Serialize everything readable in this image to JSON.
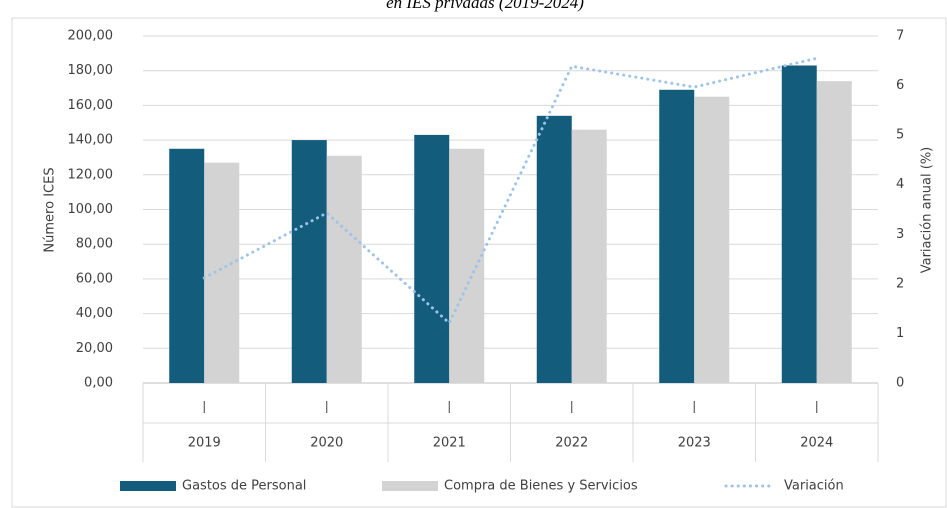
{
  "chart_data": {
    "type": "bar",
    "title": "en IES privadas (2019-2024)",
    "y_label": "Número ICES",
    "y2_label": "Variación anual (%)",
    "categories": [
      "2019",
      "2020",
      "2021",
      "2022",
      "2023",
      "2024"
    ],
    "series": [
      {
        "name": "Gastos de Personal",
        "color": "#145c7c",
        "values": [
          135,
          140,
          143,
          154,
          169,
          183
        ]
      },
      {
        "name": "Compra de Bienes y Servicios",
        "color": "#d3d3d3",
        "values": [
          127,
          131,
          135,
          146,
          165,
          174
        ]
      },
      {
        "name": "Variación",
        "color": "#9dc3e6",
        "type": "line",
        "axis": "y2",
        "values": [
          2.12,
          3.43,
          1.21,
          6.39,
          5.97,
          6.55
        ]
      }
    ],
    "ylim": [
      0,
      200
    ],
    "yticks": [
      {
        "value": 0,
        "label": "0,00"
      },
      {
        "value": 20,
        "label": "20,00"
      },
      {
        "value": 40,
        "label": "40,00"
      },
      {
        "value": 60,
        "label": "60,00"
      },
      {
        "value": 80,
        "label": "80,00"
      },
      {
        "value": 100,
        "label": "100,00"
      },
      {
        "value": 120,
        "label": "120,00"
      },
      {
        "value": 140,
        "label": "140,00"
      },
      {
        "value": 160,
        "label": "160,00"
      },
      {
        "value": 180,
        "label": "180,00"
      },
      {
        "value": 200,
        "label": "200,00"
      }
    ],
    "y2lim": [
      0,
      7
    ],
    "y2ticks": [
      0,
      1,
      2,
      3,
      4,
      5,
      6,
      7
    ],
    "grid": true
  }
}
